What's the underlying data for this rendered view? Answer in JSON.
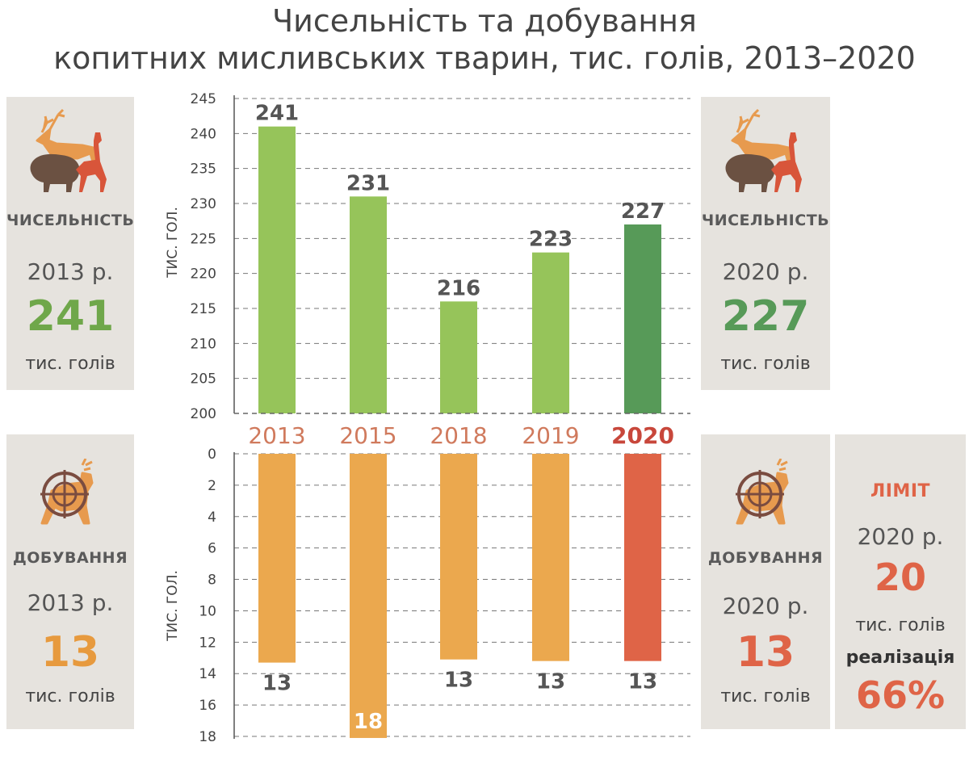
{
  "title_line1": "Чисельність та добування",
  "title_line2": "копитних мисливських тварин, тис. голів, 2013–2020",
  "colors": {
    "population": "#96c45a",
    "population_highlight": "#579a58",
    "harvest": "#eba84e",
    "harvest_highlight": "#df6447",
    "year_text": "#d07a5d",
    "year_highlight": "#c8473b",
    "panel_bg": "#e6e3de"
  },
  "panels": {
    "pop_2013": {
      "icon": "deer-boar-roe-icon",
      "label": "ЧИСЕЛЬНІСТЬ",
      "year": "2013 р.",
      "value": "241",
      "unit": "тис. голів",
      "color": "#6fa74a"
    },
    "pop_2020": {
      "icon": "deer-boar-roe-icon",
      "label": "ЧИСЕЛЬНІСТЬ",
      "year": "2020 р.",
      "value": "227",
      "unit": "тис. голів",
      "color": "#579a58"
    },
    "harv_2013": {
      "icon": "deer-crosshair-icon",
      "label": "ДОБУВАННЯ",
      "year": "2013 р.",
      "value": "13",
      "unit": "тис. голів",
      "color": "#e79a3e"
    },
    "harv_2020": {
      "icon": "deer-crosshair-icon",
      "label": "ДОБУВАННЯ",
      "year": "2020 р.",
      "value": "13",
      "unit": "тис. голів",
      "color": "#df6447"
    },
    "limit_2020": {
      "label": "ЛІМІТ",
      "year": "2020 р.",
      "value": "20",
      "unit": "тис. голів",
      "realization_label": "реалізація",
      "realization_value": "66%",
      "color": "#df6447"
    }
  },
  "chart_data": [
    {
      "type": "bar",
      "categories": [
        "2013",
        "2015",
        "2018",
        "2019",
        "2020"
      ],
      "values": [
        241,
        231,
        216,
        223,
        227
      ],
      "value_labels": [
        "241",
        "231",
        "216",
        "223",
        "227"
      ],
      "highlight_index": 4,
      "ylabel": "ТИС. ГОЛ.",
      "ylim": [
        200,
        245
      ],
      "yticks": [
        200,
        205,
        210,
        215,
        220,
        225,
        230,
        235,
        240,
        245
      ],
      "grid": true
    },
    {
      "type": "bar",
      "orientation": "downward",
      "categories": [
        "2013",
        "2015",
        "2018",
        "2019",
        "2020"
      ],
      "values": [
        13.3,
        18.1,
        13.1,
        13.2,
        13.2
      ],
      "value_labels": [
        "13",
        "18",
        "13",
        "13",
        "13"
      ],
      "highlight_index": 4,
      "ylabel": "ТИС. ГОЛ.",
      "ylim": [
        0,
        18
      ],
      "yticks": [
        0,
        2,
        4,
        6,
        8,
        10,
        12,
        14,
        16,
        18
      ],
      "grid": true
    }
  ]
}
